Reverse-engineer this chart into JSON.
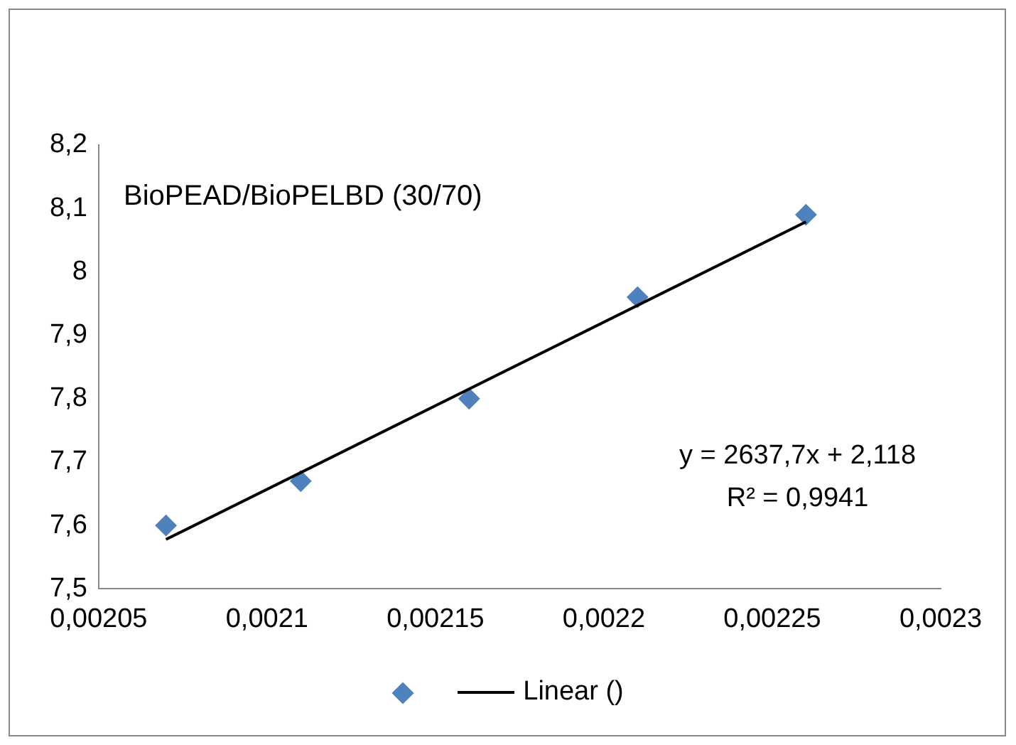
{
  "chart_data": {
    "type": "scatter",
    "title": "BioPEAD/BioPELBD (30/70)",
    "series": [
      {
        "type": "scatter",
        "color": "#4f81bd",
        "x": [
          0.00207,
          0.00211,
          0.00216,
          0.00221,
          0.00226
        ],
        "values": [
          7.6,
          7.67,
          7.8,
          7.96,
          8.09
        ],
        "marker": "diamond"
      },
      {
        "type": "line",
        "name": "Linear ()",
        "color": "#000000",
        "x": [
          0.00207,
          0.00226
        ],
        "values": [
          7.578,
          8.079
        ],
        "marker": "none",
        "line_style": "solid"
      }
    ],
    "xlim": [
      0.00205,
      0.0023
    ],
    "xticks": [
      {
        "value": 0.00205,
        "label": "0,00205"
      },
      {
        "value": 0.0021,
        "label": "0,0021"
      },
      {
        "value": 0.00215,
        "label": "0,00215"
      },
      {
        "value": 0.0022,
        "label": "0,0022"
      },
      {
        "value": 0.00225,
        "label": "0,00225"
      },
      {
        "value": 0.0023,
        "label": "0,0023"
      }
    ],
    "ylim": [
      7.5,
      8.2
    ],
    "yticks": [
      {
        "value": 7.5,
        "label": "7,5"
      },
      {
        "value": 7.6,
        "label": "7,6"
      },
      {
        "value": 7.7,
        "label": "7,7"
      },
      {
        "value": 7.8,
        "label": "7,8"
      },
      {
        "value": 7.9,
        "label": "7,9"
      },
      {
        "value": 8,
        "label": "8"
      },
      {
        "value": 8.1,
        "label": "8,1"
      },
      {
        "value": 8.2,
        "label": "8,2"
      }
    ],
    "annotations": [
      "y = 2637,7x + 2,118",
      "R² = 0,9941"
    ],
    "grid": false,
    "legend": "bottom"
  }
}
